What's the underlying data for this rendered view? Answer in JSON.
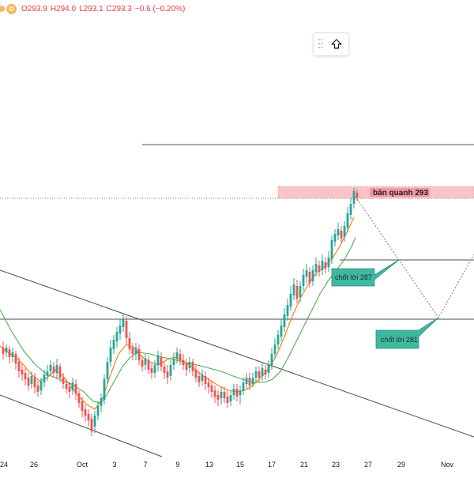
{
  "legend": {
    "badge": "D",
    "open": "O293.9",
    "high": "H294.0",
    "low": "L293.1",
    "close": "C293.3",
    "change": "−0.6 (−0.20%)"
  },
  "annotations": {
    "sell_label": "bán quanh 293",
    "take_profit_1": "chốt lời 287",
    "take_profit_2": "chốt lời 281"
  },
  "x_axis": {
    "ticks": [
      "24",
      "26",
      "Oct",
      "3",
      "7",
      "9",
      "13",
      "15",
      "17",
      "21",
      "23",
      "27",
      "29",
      "Nov"
    ]
  },
  "toolbar": {
    "drag_icon": "drag-handle-icon",
    "up_icon": "arrow-up-icon"
  },
  "colors": {
    "up_candle": "#26a69a",
    "down_candle": "#ef5350",
    "ma_fast": "#f57c00",
    "ma_slow": "#4caf50",
    "sell_zone": "#f8c4c8",
    "note_box": "#3fb8a0",
    "legend_badge": "#f7b85b"
  }
}
